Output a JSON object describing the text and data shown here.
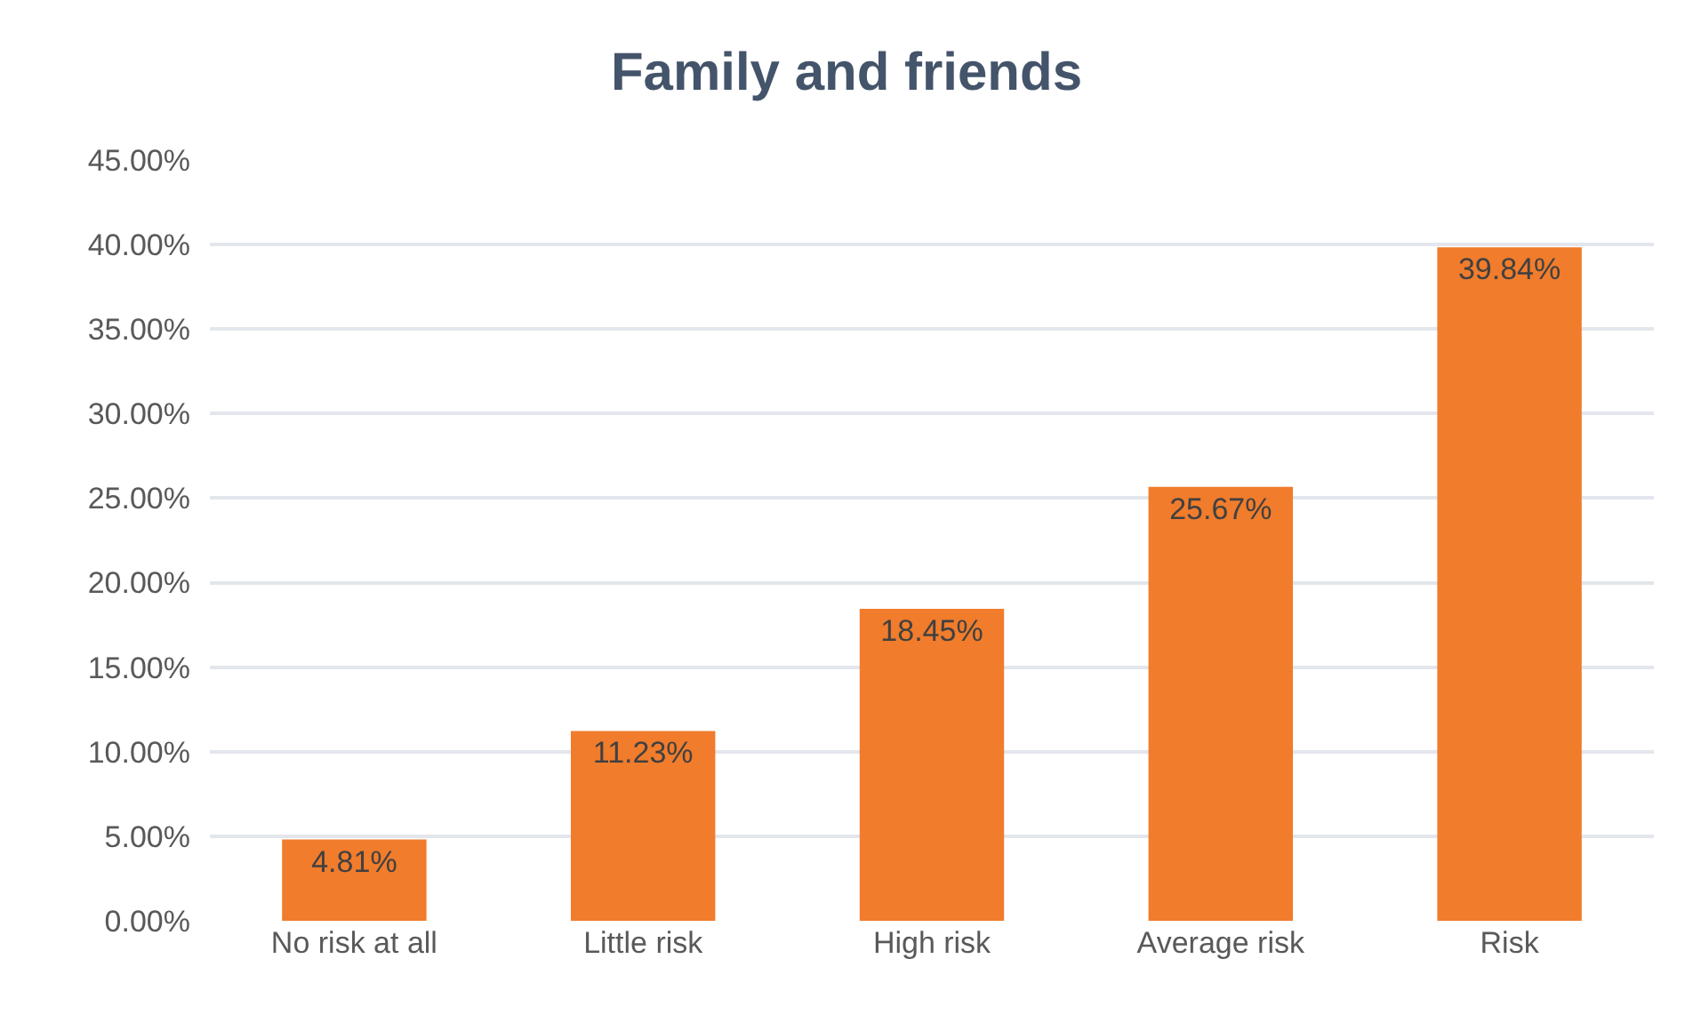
{
  "chart_data": {
    "type": "bar",
    "title": "Family and friends",
    "categories": [
      "No risk at all",
      "Little risk",
      "High risk",
      "Average risk",
      "Risk"
    ],
    "values": [
      4.81,
      11.23,
      18.45,
      25.67,
      39.84
    ],
    "value_labels": [
      "4.81%",
      "11.23%",
      "18.45%",
      "25.67%",
      "39.84%"
    ],
    "color": "#f07c2c",
    "ylim": [
      0,
      45
    ],
    "yticks": [
      {
        "value": 0,
        "label": "0.00%"
      },
      {
        "value": 5,
        "label": "5.00%"
      },
      {
        "value": 10,
        "label": "10.00%"
      },
      {
        "value": 15,
        "label": "15.00%"
      },
      {
        "value": 20,
        "label": "20.00%"
      },
      {
        "value": 25,
        "label": "25.00%"
      },
      {
        "value": 30,
        "label": "30.00%"
      },
      {
        "value": 35,
        "label": "35.00%"
      },
      {
        "value": 40,
        "label": "40.00%"
      },
      {
        "value": 45,
        "label": "45.00%"
      }
    ],
    "grid": "y"
  }
}
